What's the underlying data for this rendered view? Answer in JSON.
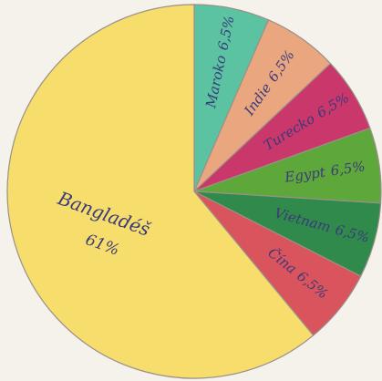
{
  "chart_data": {
    "type": "pie",
    "categories": [
      "Maroko",
      "Indie",
      "Turecko",
      "Egypt",
      "Vietnam",
      "Čína",
      "Bangladéš"
    ],
    "values": [
      6.5,
      6.5,
      6.5,
      6.5,
      6.5,
      6.5,
      61
    ],
    "value_labels": [
      "6,5%",
      "6,5%",
      "6,5%",
      "6,5%",
      "6,5%",
      "6,5%",
      "61%"
    ],
    "colors": [
      "#5cc3a2",
      "#e9a67f",
      "#c9376b",
      "#5ea83b",
      "#2f8a4c",
      "#d9545c",
      "#f6dd6c"
    ]
  }
}
